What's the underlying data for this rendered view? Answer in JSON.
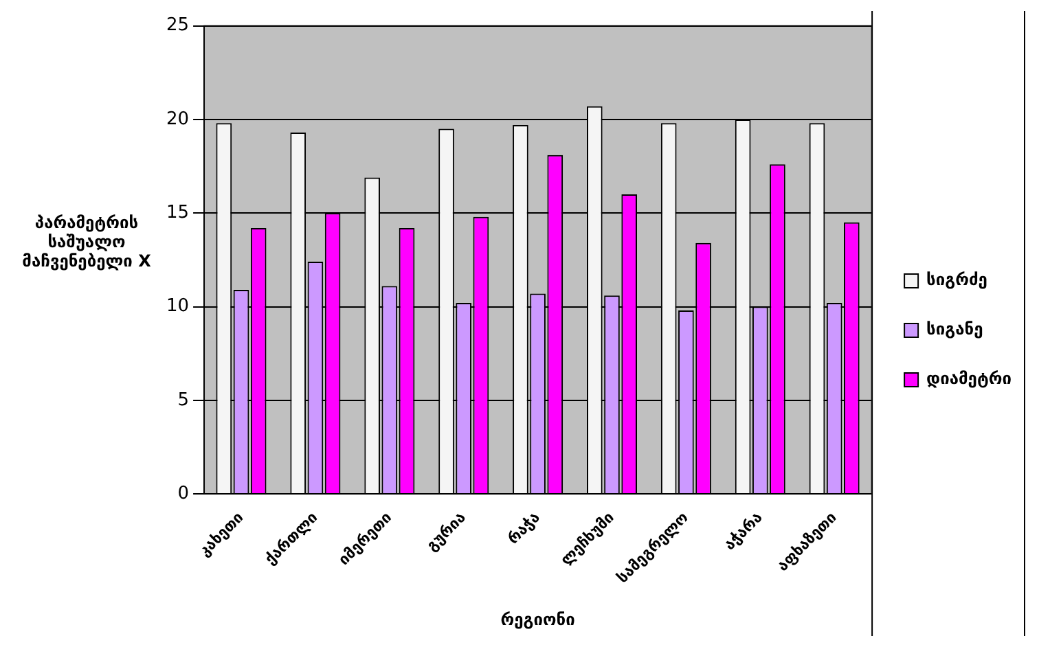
{
  "chart_data": {
    "type": "bar",
    "xlabel": "რეგიონი",
    "ylabel": "პარამეტრის საშუალო მაჩვენებელი X",
    "categories": [
      "კახეთი",
      "ქართლი",
      "იმერეთი",
      "გურია",
      "რაჭა",
      "ლეჩხუმი",
      "სამეგრელო",
      "აჭარა",
      "აფხაზეთი"
    ],
    "series": [
      {
        "name": "სიგრძე",
        "color": "#f5f5f5",
        "values": [
          19.8,
          19.3,
          16.9,
          19.5,
          19.7,
          20.7,
          19.8,
          20.0,
          19.8
        ]
      },
      {
        "name": "სიგანე",
        "color": "#cc99ff",
        "values": [
          10.9,
          12.4,
          11.1,
          10.2,
          10.7,
          10.6,
          9.8,
          10.0,
          10.2
        ]
      },
      {
        "name": "დიამეტრი",
        "color": "#ff00ff",
        "values": [
          14.2,
          15.0,
          14.2,
          14.8,
          18.1,
          16.0,
          13.4,
          17.6,
          14.5
        ]
      }
    ],
    "ylim": [
      0,
      25
    ],
    "yticks": [
      0,
      5,
      10,
      15,
      20,
      25
    ],
    "grid": "y",
    "legend": "right"
  }
}
